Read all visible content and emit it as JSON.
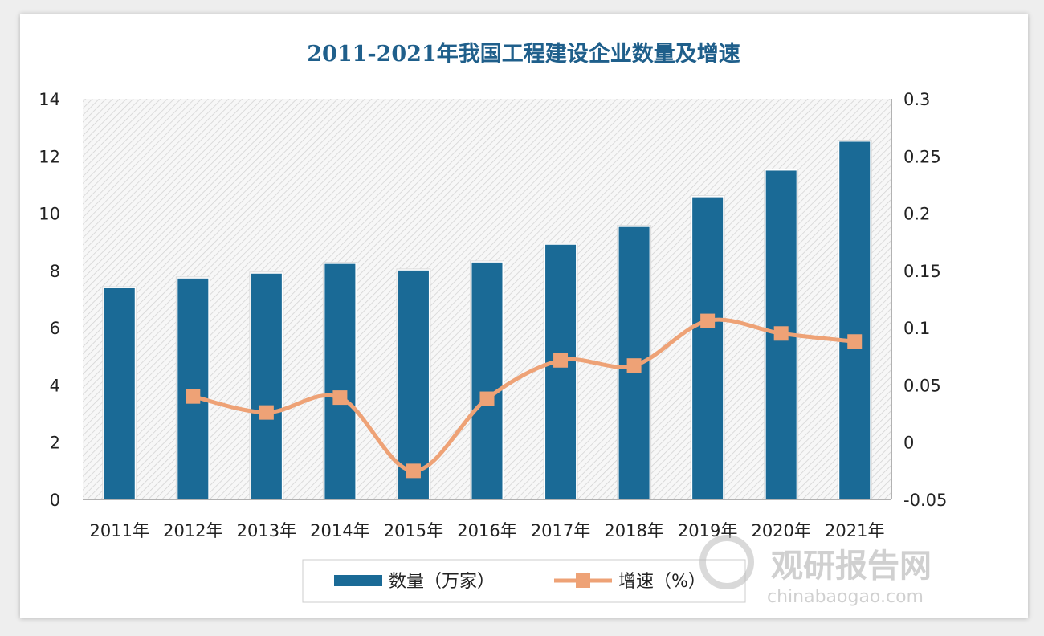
{
  "chart_data": {
    "type": "bar+line",
    "title": "2011-2021年我国工程建设企业数量及增速",
    "categories": [
      "2011年",
      "2012年",
      "2013年",
      "2014年",
      "2015年",
      "2016年",
      "2017年",
      "2018年",
      "2019年",
      "2020年",
      "2021年"
    ],
    "series": [
      {
        "name": "数量（万家）",
        "type": "bar",
        "axis": "left",
        "color": "#1a6a96",
        "values": [
          7.38,
          7.72,
          7.89,
          8.23,
          8.0,
          8.28,
          8.9,
          9.52,
          10.56,
          11.49,
          12.5
        ]
      },
      {
        "name": "增速（%）",
        "type": "line",
        "axis": "right",
        "color": "#eea276",
        "marker": "square",
        "values": [
          null,
          0.04,
          0.026,
          0.039,
          -0.025,
          0.038,
          0.0715,
          0.067,
          0.106,
          0.095,
          0.088
        ]
      }
    ],
    "y_left": {
      "range": [
        0,
        14
      ],
      "ticks": [
        "0",
        "2",
        "4",
        "6",
        "8",
        "10",
        "12",
        "14"
      ]
    },
    "y_right": {
      "range": [
        -0.05,
        0.3
      ],
      "ticks": [
        "-0.05",
        "0",
        "0.05",
        "0.1",
        "0.15",
        "0.2",
        "0.25",
        "0.3"
      ]
    },
    "grid": false,
    "legend": "bottom"
  },
  "watermark": {
    "brand": "观研报告网",
    "site": "chinabaogao.com"
  }
}
